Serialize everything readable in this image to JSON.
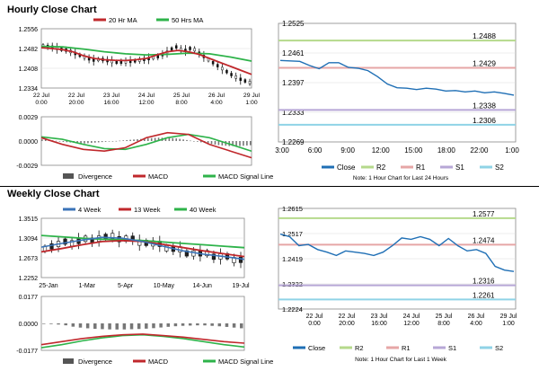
{
  "hourly": {
    "title": "Hourly Close Chart",
    "main": {
      "legend": [
        {
          "name": "20 Hr MA",
          "color": "#c0282c"
        },
        {
          "name": "50 Hrs MA",
          "color": "#2eb34a"
        }
      ],
      "y_ticks": [
        "1.2556",
        "1.2482",
        "1.2408",
        "1.2334"
      ],
      "ylim": [
        1.2334,
        1.2556
      ],
      "x_ticks": [
        {
          "d": "22 Jul",
          "t": "0:00"
        },
        {
          "d": "22 Jul",
          "t": "20:00"
        },
        {
          "d": "23 Jul",
          "t": "16:00"
        },
        {
          "d": "24 Jul",
          "t": "12:00"
        },
        {
          "d": "25 Jul",
          "t": "8:00"
        },
        {
          "d": "26 Jul",
          "t": "4:00"
        },
        {
          "d": "29 Jul",
          "t": "1:00"
        }
      ]
    },
    "macd": {
      "y_ticks": [
        "0.0029",
        "0.0000",
        "-0.0029"
      ],
      "ylim": [
        -0.0029,
        0.0029
      ],
      "legend": [
        {
          "name": "Divergence",
          "color": "#555555",
          "kind": "bar"
        },
        {
          "name": "MACD",
          "color": "#c0282c",
          "kind": "line"
        },
        {
          "name": "MACD Signal Line",
          "color": "#2eb34a",
          "kind": "line"
        }
      ]
    },
    "close": {
      "y_ticks": [
        "1.2525",
        "1.2461",
        "1.2397",
        "1.2333",
        "1.2269"
      ],
      "ylim": [
        1.2269,
        1.2525
      ],
      "x_ticks": [
        "3:00",
        "6:00",
        "9:00",
        "12:00",
        "15:00",
        "18:00",
        "22:00",
        "1:00"
      ],
      "levels": [
        {
          "name": "R2",
          "value": 1.2488,
          "label": "1.2488",
          "color": "#b5d98b"
        },
        {
          "name": "R1",
          "value": 1.2429,
          "label": "1.2429",
          "color": "#e6a6a6"
        },
        {
          "name": "S1",
          "value": 1.2338,
          "label": "1.2338",
          "color": "#b7a7d6"
        },
        {
          "name": "S2",
          "value": 1.2306,
          "label": "1.2306",
          "color": "#8fd3e6"
        }
      ],
      "legend": [
        {
          "name": "Close",
          "color": "#1f6fb5"
        },
        {
          "name": "R2",
          "color": "#b5d98b"
        },
        {
          "name": "R1",
          "color": "#e6a6a6"
        },
        {
          "name": "S1",
          "color": "#b7a7d6"
        },
        {
          "name": "S2",
          "color": "#8fd3e6"
        }
      ],
      "note": "Note: 1 Hour Chart for Last 24 Hours"
    }
  },
  "weekly": {
    "title": "Weekly Close Chart",
    "main": {
      "legend": [
        {
          "name": "4 Week",
          "color": "#3a73b8"
        },
        {
          "name": "13 Week",
          "color": "#c0282c"
        },
        {
          "name": "40 Week",
          "color": "#2eb34a"
        }
      ],
      "y_ticks": [
        "1.3515",
        "1.3094",
        "1.2673",
        "1.2252"
      ],
      "ylim": [
        1.2252,
        1.3515
      ],
      "x_ticks": [
        "25-Jan",
        "1-Mar",
        "5-Apr",
        "10-May",
        "14-Jun",
        "19-Jul"
      ]
    },
    "macd": {
      "y_ticks": [
        "0.0177",
        "0.0000",
        "-0.0177"
      ],
      "ylim": [
        -0.0177,
        0.0177
      ],
      "legend": [
        {
          "name": "Divergence",
          "color": "#555555",
          "kind": "bar"
        },
        {
          "name": "MACD",
          "color": "#c0282c",
          "kind": "line"
        },
        {
          "name": "MACD Signal Line",
          "color": "#2eb34a",
          "kind": "line"
        }
      ]
    },
    "close": {
      "y_ticks": [
        "1.2615",
        "1.2517",
        "1.2419",
        "1.2322",
        "1.2224"
      ],
      "ylim": [
        1.2224,
        1.2615
      ],
      "x_ticks": [
        {
          "d": "22 Jul",
          "t": "0:00"
        },
        {
          "d": "22 Jul",
          "t": "20:00"
        },
        {
          "d": "23 Jul",
          "t": "16:00"
        },
        {
          "d": "24 Jul",
          "t": "12:00"
        },
        {
          "d": "25 Jul",
          "t": "8:00"
        },
        {
          "d": "26 Jul",
          "t": "4:00"
        },
        {
          "d": "29 Jul",
          "t": "1:00"
        }
      ],
      "levels": [
        {
          "name": "R2",
          "value": 1.2577,
          "label": "1.2577",
          "color": "#b5d98b"
        },
        {
          "name": "R1",
          "value": 1.2474,
          "label": "1.2474",
          "color": "#e6a6a6"
        },
        {
          "name": "S1",
          "value": 1.2316,
          "label": "1.2316",
          "color": "#b7a7d6"
        },
        {
          "name": "S2",
          "value": 1.2261,
          "label": "1.2261",
          "color": "#8fd3e6"
        }
      ],
      "legend": [
        {
          "name": "Close",
          "color": "#1f6fb5"
        },
        {
          "name": "R2",
          "color": "#b5d98b"
        },
        {
          "name": "R1",
          "color": "#e6a6a6"
        },
        {
          "name": "S1",
          "color": "#b7a7d6"
        },
        {
          "name": "S2",
          "color": "#8fd3e6"
        }
      ],
      "note": "Note: 1 Hour Chart for Last 1 Week"
    }
  },
  "chart_data": [
    {
      "type": "line",
      "series": [
        {
          "name": "20 Hr MA",
          "x": [
            0,
            0.05,
            0.1,
            0.15,
            0.2,
            0.25,
            0.3,
            0.35,
            0.4,
            0.45,
            0.5,
            0.55,
            0.6,
            0.65,
            0.7,
            0.75,
            0.8,
            0.85,
            0.9,
            0.95,
            1
          ],
          "values": [
            1.2485,
            1.2482,
            1.2478,
            1.247,
            1.2455,
            1.2445,
            1.244,
            1.2438,
            1.2437,
            1.244,
            1.2445,
            1.2458,
            1.247,
            1.2475,
            1.247,
            1.246,
            1.2445,
            1.243,
            1.2415,
            1.24,
            1.2385
          ]
        },
        {
          "name": "50 Hrs MA",
          "x": [
            0,
            0.1,
            0.2,
            0.3,
            0.4,
            0.5,
            0.6,
            0.7,
            0.8,
            0.9,
            1
          ],
          "values": [
            1.249,
            1.2488,
            1.248,
            1.247,
            1.2462,
            1.2458,
            1.246,
            1.2465,
            1.2462,
            1.245,
            1.2435
          ]
        },
        {
          "name": "Price",
          "x": [
            0,
            0.04,
            0.08,
            0.12,
            0.16,
            0.2,
            0.24,
            0.28,
            0.32,
            0.36,
            0.4,
            0.44,
            0.48,
            0.52,
            0.56,
            0.6,
            0.64,
            0.68,
            0.72,
            0.76,
            0.8,
            0.84,
            0.88,
            0.92,
            0.96,
            1
          ],
          "values": [
            1.2492,
            1.2488,
            1.248,
            1.2475,
            1.2462,
            1.245,
            1.2438,
            1.2442,
            1.2435,
            1.243,
            1.2432,
            1.2435,
            1.244,
            1.2445,
            1.2452,
            1.2468,
            1.249,
            1.2472,
            1.2485,
            1.2462,
            1.244,
            1.242,
            1.24,
            1.238,
            1.2365,
            1.2355
          ]
        }
      ],
      "ylim": [
        1.2334,
        1.2556
      ]
    },
    {
      "type": "bar",
      "series": [
        {
          "name": "Divergence",
          "x": [
            0,
            0.05,
            0.1,
            0.15,
            0.2,
            0.25,
            0.3,
            0.35,
            0.4,
            0.45,
            0.5,
            0.55,
            0.6,
            0.65,
            0.7,
            0.75,
            0.8,
            0.85,
            0.9,
            0.95,
            1
          ],
          "values": [
            0.0002,
            0.0001,
            -0.0001,
            -0.0002,
            -0.0003,
            -0.0002,
            -0.0001,
            0.0,
            0.0001,
            0.0002,
            0.0003,
            0.0004,
            0.0004,
            0.0003,
            0.0001,
            -0.0001,
            -0.0003,
            -0.0005,
            -0.0006,
            -0.0006,
            -0.0005
          ]
        },
        {
          "name": "MACD",
          "x": [
            0,
            0.1,
            0.2,
            0.3,
            0.4,
            0.5,
            0.6,
            0.7,
            0.8,
            0.9,
            1
          ],
          "values": [
            0.0004,
            -0.0004,
            -0.001,
            -0.0012,
            -0.0008,
            0.0004,
            0.001,
            0.0008,
            -0.0004,
            -0.0012,
            -0.002
          ]
        },
        {
          "name": "MACD Signal Line",
          "x": [
            0,
            0.1,
            0.2,
            0.3,
            0.4,
            0.5,
            0.6,
            0.7,
            0.8,
            0.9,
            1
          ],
          "values": [
            0.0005,
            0.0002,
            -0.0004,
            -0.0009,
            -0.001,
            -0.0004,
            0.0004,
            0.0008,
            0.0004,
            -0.0004,
            -0.0012
          ]
        }
      ],
      "ylim": [
        -0.0029,
        0.0029
      ]
    },
    {
      "type": "line",
      "series": [
        {
          "name": "Close",
          "x": [
            0,
            1,
            2,
            3,
            4,
            5,
            6,
            7,
            8,
            9,
            10,
            11,
            12,
            13,
            14,
            15,
            16,
            17,
            18,
            19,
            20,
            21,
            22,
            23,
            24
          ],
          "values": [
            1.2445,
            1.2444,
            1.2443,
            1.2434,
            1.2427,
            1.244,
            1.244,
            1.243,
            1.2428,
            1.2423,
            1.241,
            1.2394,
            1.2386,
            1.2385,
            1.2382,
            1.2385,
            1.2383,
            1.2379,
            1.238,
            1.2377,
            1.2379,
            1.2375,
            1.2377,
            1.2374,
            1.237
          ]
        },
        {
          "name": "R2",
          "value": 1.2488
        },
        {
          "name": "R1",
          "value": 1.2429
        },
        {
          "name": "S1",
          "value": 1.2338
        },
        {
          "name": "S2",
          "value": 1.2306
        }
      ],
      "ylim": [
        1.2269,
        1.2525
      ]
    },
    {
      "type": "line",
      "series": [
        {
          "name": "4 Week",
          "x": [
            0,
            0.1,
            0.2,
            0.3,
            0.4,
            0.5,
            0.6,
            0.7,
            0.8,
            0.9,
            1
          ],
          "values": [
            1.29,
            1.298,
            1.305,
            1.311,
            1.309,
            1.302,
            1.292,
            1.282,
            1.275,
            1.27,
            1.264
          ]
        },
        {
          "name": "13 Week",
          "x": [
            0,
            0.1,
            0.2,
            0.3,
            0.4,
            0.5,
            0.6,
            0.7,
            0.8,
            0.9,
            1
          ],
          "values": [
            1.28,
            1.287,
            1.295,
            1.302,
            1.304,
            1.302,
            1.296,
            1.289,
            1.282,
            1.276,
            1.27
          ]
        },
        {
          "name": "40 Week",
          "x": [
            0,
            0.1,
            0.2,
            0.3,
            0.4,
            0.5,
            0.6,
            0.7,
            0.8,
            0.9,
            1
          ],
          "values": [
            1.315,
            1.312,
            1.309,
            1.307,
            1.306,
            1.304,
            1.301,
            1.298,
            1.295,
            1.292,
            1.289
          ]
        }
      ],
      "ylim": [
        1.2252,
        1.3515
      ]
    },
    {
      "type": "bar",
      "series": [
        {
          "name": "Divergence",
          "x": [
            0,
            0.05,
            0.1,
            0.15,
            0.2,
            0.25,
            0.3,
            0.35,
            0.4,
            0.45,
            0.5,
            0.55,
            0.6,
            0.65,
            0.7,
            0.75,
            0.8,
            0.85,
            0.9,
            0.95,
            1
          ],
          "values": [
            -0.0002,
            -0.0005,
            -0.001,
            -0.0022,
            -0.003,
            -0.0035,
            -0.0038,
            -0.004,
            -0.004,
            -0.0038,
            -0.0036,
            -0.0032,
            -0.0026,
            -0.002,
            -0.0016,
            -0.0014,
            -0.0012,
            -0.0016,
            -0.002,
            -0.0026,
            -0.0032
          ]
        },
        {
          "name": "MACD",
          "x": [
            0,
            0.1,
            0.2,
            0.3,
            0.4,
            0.5,
            0.6,
            0.7,
            0.8,
            0.9,
            1
          ],
          "values": [
            -0.014,
            -0.012,
            -0.01,
            -0.0085,
            -0.0075,
            -0.007,
            -0.008,
            -0.009,
            -0.0105,
            -0.012,
            -0.013
          ]
        },
        {
          "name": "MACD Signal Line",
          "x": [
            0,
            0.1,
            0.2,
            0.3,
            0.4,
            0.5,
            0.6,
            0.7,
            0.8,
            0.9,
            1
          ],
          "values": [
            -0.016,
            -0.014,
            -0.0115,
            -0.0095,
            -0.008,
            -0.0075,
            -0.0085,
            -0.01,
            -0.012,
            -0.014,
            -0.0155
          ]
        }
      ],
      "ylim": [
        -0.0177,
        0.0177
      ]
    },
    {
      "type": "line",
      "series": [
        {
          "name": "Close",
          "x": [
            0,
            0.04,
            0.08,
            0.12,
            0.16,
            0.2,
            0.24,
            0.28,
            0.32,
            0.36,
            0.4,
            0.44,
            0.48,
            0.52,
            0.56,
            0.6,
            0.64,
            0.68,
            0.72,
            0.76,
            0.8,
            0.84,
            0.88,
            0.92,
            0.96,
            1
          ],
          "values": [
            1.2515,
            1.2505,
            1.247,
            1.2475,
            1.2455,
            1.2445,
            1.2432,
            1.245,
            1.2445,
            1.244,
            1.2432,
            1.2445,
            1.247,
            1.25,
            1.2495,
            1.2505,
            1.2495,
            1.247,
            1.2498,
            1.247,
            1.245,
            1.2455,
            1.244,
            1.239,
            1.2375,
            1.237
          ]
        },
        {
          "name": "R2",
          "value": 1.2577
        },
        {
          "name": "R1",
          "value": 1.2474
        },
        {
          "name": "S1",
          "value": 1.2316
        },
        {
          "name": "S2",
          "value": 1.2261
        }
      ],
      "ylim": [
        1.2224,
        1.2615
      ]
    }
  ]
}
